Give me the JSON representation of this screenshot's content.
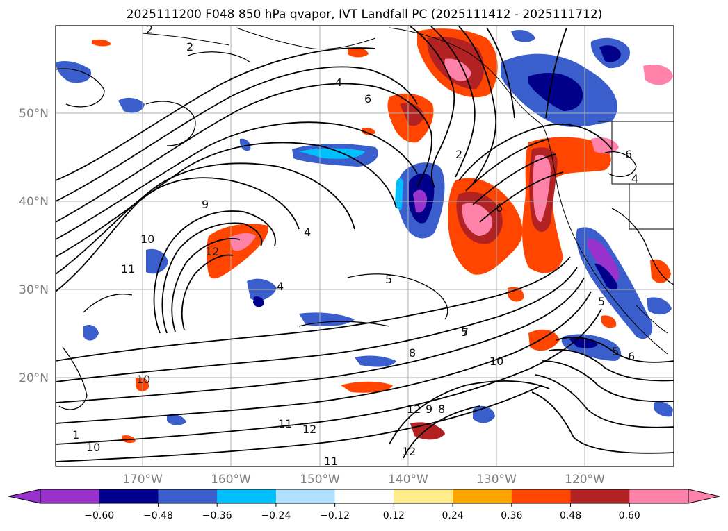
{
  "title": "2025111200 F048 850 hPa qvapor, IVT Landfall PC (2025111412 - 2025111712)",
  "axes": {
    "lat_ticks": [
      "50°N",
      "40°N",
      "30°N",
      "20°N"
    ],
    "lon_ticks": [
      "170°W",
      "160°W",
      "150°W",
      "140°W",
      "130°W",
      "120°W"
    ]
  },
  "colorbar": {
    "ticks": [
      "−0.60",
      "−0.48",
      "−0.36",
      "−0.24",
      "−0.12",
      "0.12",
      "0.24",
      "0.36",
      "0.48",
      "0.60"
    ],
    "colors": {
      "under": "#9932cc",
      "bins": [
        "#9932cc",
        "#00008b",
        "#3a5fcd",
        "#00bfff",
        "#b0e2ff",
        "#ffffff",
        "#ffec8b",
        "#ffa500",
        "#ff4500",
        "#b22222",
        "#ff82ab"
      ],
      "over": "#ff82ab"
    }
  },
  "contour_labels": [
    "2",
    "2",
    "4",
    "6",
    "2",
    "9",
    "10",
    "11",
    "12",
    "4",
    "5",
    "6",
    "4",
    "5",
    "8",
    "10",
    "12",
    "9",
    "8",
    "12",
    "11",
    "12",
    "11",
    "10",
    "10",
    "7",
    "5",
    "6",
    "5",
    "4",
    "6",
    "1"
  ]
}
